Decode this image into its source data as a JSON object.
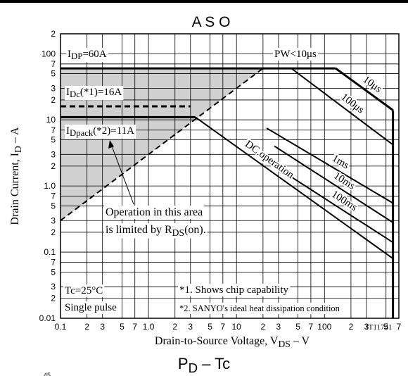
{
  "chart_data": {
    "type": "line",
    "title": "A S O",
    "y_label": [
      "Drain Current, I",
      "D",
      " – A"
    ],
    "x_label": [
      "Drain-to-Source Voltage, V",
      "DS",
      " – V"
    ],
    "log_x": true,
    "log_y": true,
    "grid": true,
    "color": "#000000",
    "shade_color": "#d0d0d0",
    "xlim": [
      0.1,
      700
    ],
    "ylim": [
      0.01,
      200
    ],
    "xticks": [
      0.1,
      {
        "value": 0.2,
        "label": "2"
      },
      {
        "value": 0.3,
        "label": "3"
      },
      {
        "value": 0.5,
        "label": "5"
      },
      {
        "value": 0.7,
        "label": "7"
      },
      {
        "value": 1,
        "label": "1.0"
      },
      {
        "value": 2,
        "label": "2"
      },
      {
        "value": 3,
        "label": "3"
      },
      {
        "value": 5,
        "label": "5"
      },
      {
        "value": 7,
        "label": "7"
      },
      10,
      {
        "value": 20,
        "label": "2"
      },
      {
        "value": 30,
        "label": "3"
      },
      {
        "value": 50,
        "label": "5"
      },
      {
        "value": 70,
        "label": "7"
      },
      100,
      {
        "value": 200,
        "label": "2"
      },
      {
        "value": 300,
        "label": "3"
      },
      {
        "value": 500,
        "label": "5"
      },
      {
        "value": 700,
        "label": "7"
      }
    ],
    "yticks": [
      0.01,
      {
        "value": 0.02,
        "label": "2"
      },
      {
        "value": 0.03,
        "label": "3"
      },
      {
        "value": 0.05,
        "label": "5"
      },
      {
        "value": 0.07,
        "label": "7"
      },
      0.1,
      {
        "value": 0.2,
        "label": "2"
      },
      {
        "value": 0.3,
        "label": "3"
      },
      {
        "value": 0.5,
        "label": "5"
      },
      {
        "value": 0.7,
        "label": "7"
      },
      {
        "value": 1,
        "label": "1.0"
      },
      {
        "value": 2,
        "label": "2"
      },
      {
        "value": 3,
        "label": "3"
      },
      {
        "value": 5,
        "label": "5"
      },
      {
        "value": 7,
        "label": "7"
      },
      10,
      {
        "value": 20,
        "label": "2"
      },
      {
        "value": 30,
        "label": "3"
      },
      {
        "value": 50,
        "label": "5"
      },
      {
        "value": 70,
        "label": "7"
      },
      100,
      {
        "value": 200,
        "label": "2"
      }
    ],
    "series": [
      {
        "x": [
          0.1,
          134
        ],
        "y": [
          60,
          60
        ],
        "weight": "thick"
      },
      {
        "name": "10μs",
        "x": [
          134,
          600
        ],
        "y": [
          60,
          14
        ],
        "weight": "thick"
      },
      {
        "x": [
          600,
          600
        ],
        "y": [
          14,
          0.01
        ],
        "weight": "thick"
      },
      {
        "name": "100μs",
        "x": [
          42,
          600
        ],
        "y": [
          60,
          4.2
        ],
        "weight": "medium"
      },
      {
        "name": "1ms",
        "x": [
          22,
          600
        ],
        "y": [
          7.5,
          0.55
        ],
        "weight": "medium"
      },
      {
        "name": "10ms",
        "x": [
          27,
          600
        ],
        "y": [
          4,
          0.28
        ],
        "weight": "medium"
      },
      {
        "name": "100ms",
        "x": [
          27,
          600
        ],
        "y": [
          2,
          0.14
        ],
        "weight": "medium"
      },
      {
        "name": "DC operation",
        "x": [
          3.4,
          600
        ],
        "y": [
          11,
          0.08
        ],
        "weight": "medium"
      },
      {
        "x": [
          0.1,
          20
        ],
        "y": [
          0.3,
          60
        ],
        "weight": "medium",
        "style": "dashed",
        "shade": true
      },
      {
        "x": [
          0.1,
          3
        ],
        "y": [
          16,
          16
        ],
        "weight": "thick",
        "style": "dashed"
      },
      {
        "x": [
          0.1,
          3.4
        ],
        "y": [
          11,
          11
        ],
        "weight": "thick"
      }
    ],
    "annotations": [
      {
        "parts": [
          "I",
          "DP",
          "=60A"
        ]
      },
      {
        "parts": [
          "PW<10μs"
        ]
      },
      {
        "parts": [
          "I",
          "Dc",
          "(*1)=16A"
        ]
      },
      {
        "parts": [
          "I",
          "Dpack",
          "(*2)=11A"
        ]
      },
      {
        "parts": [
          "Operation in this area"
        ]
      },
      {
        "parts": [
          "is limited by R",
          "DS",
          "(on)."
        ]
      },
      {
        "parts": [
          "Tc=25°C"
        ]
      },
      {
        "parts": [
          "Single pulse"
        ]
      },
      {
        "parts": [
          "*1. Shows chip capability"
        ]
      },
      {
        "parts": [
          "*2. SANYO's ideal heat dissipation condition"
        ]
      },
      {
        "parts": [
          "IT11741"
        ]
      }
    ],
    "next_title": [
      "P",
      "D",
      " – Tc"
    ],
    "page_number": "45"
  }
}
